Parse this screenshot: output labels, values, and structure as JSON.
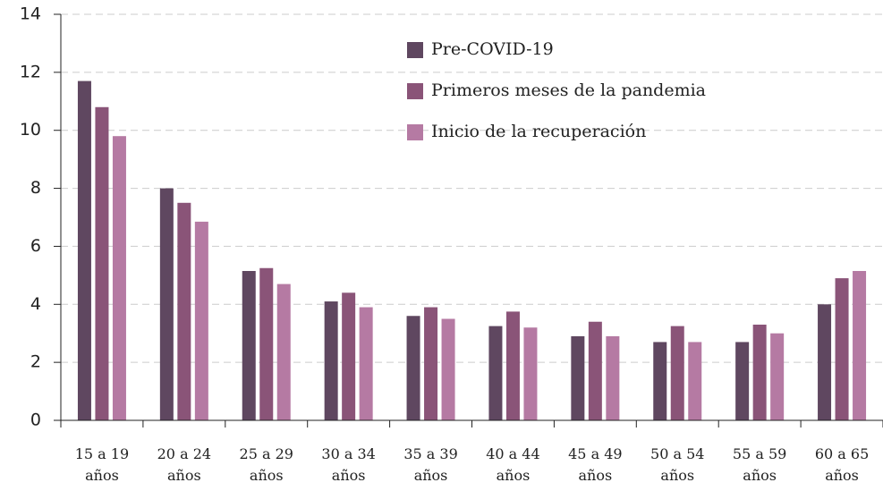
{
  "chart_data": {
    "type": "bar",
    "categories": [
      "15 a 19 años",
      "20 a 24 años",
      "25 a 29 años",
      "30 a 34 años",
      "35 a 39 años",
      "40 a 44 años",
      "45 a 49 años",
      "50 a 54 años",
      "55 a 59 años",
      "60 a 65 años"
    ],
    "series": [
      {
        "name": "Pre-COVID-19",
        "color": "#5f4760",
        "values": [
          11.7,
          8.0,
          5.15,
          4.1,
          3.6,
          3.25,
          2.9,
          2.7,
          2.7,
          4.0
        ]
      },
      {
        "name": "Primeros meses de la pandemia",
        "color": "#8a5478",
        "values": [
          10.8,
          7.5,
          5.25,
          4.4,
          3.9,
          3.75,
          3.4,
          3.25,
          3.3,
          4.9
        ]
      },
      {
        "name": "Inicio de la recuperación",
        "color": "#b57aa3",
        "values": [
          9.8,
          6.85,
          4.7,
          3.9,
          3.5,
          3.2,
          2.9,
          2.7,
          3.0,
          5.15
        ]
      }
    ],
    "ylim": [
      0,
      14
    ],
    "yticks": [
      0,
      2,
      4,
      6,
      8,
      10,
      12,
      14
    ],
    "grid": true,
    "legend": "top"
  }
}
